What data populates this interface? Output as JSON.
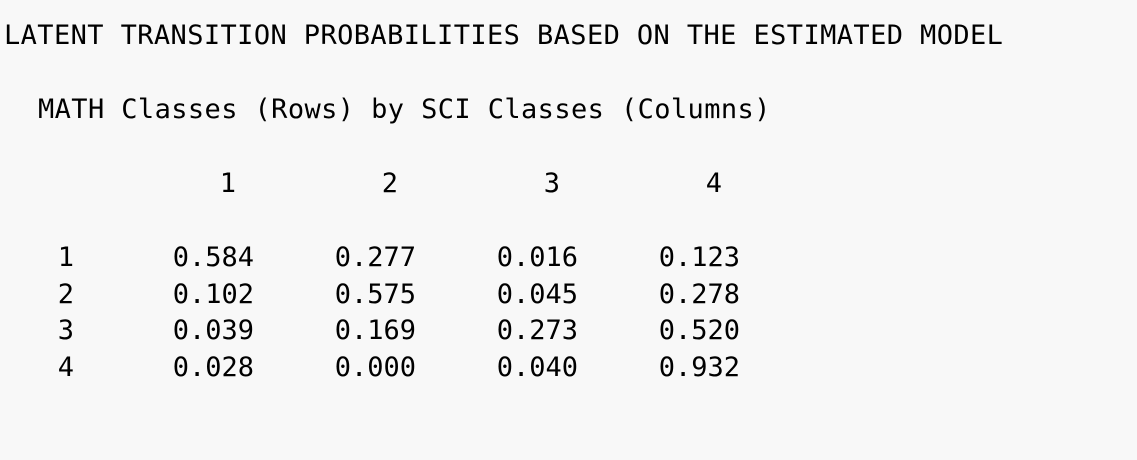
{
  "title": "LATENT TRANSITION PROBABILITIES BASED ON THE ESTIMATED MODEL",
  "subtitle": "MATH Classes (Rows) by SCI Classes (Columns)",
  "column_headers": [
    "1",
    "2",
    "3",
    "4"
  ],
  "rows": [
    {
      "label": "1",
      "values": [
        "0.584",
        "0.277",
        "0.016",
        "0.123"
      ]
    },
    {
      "label": "2",
      "values": [
        "0.102",
        "0.575",
        "0.045",
        "0.278"
      ]
    },
    {
      "label": "3",
      "values": [
        "0.039",
        "0.169",
        "0.273",
        "0.520"
      ]
    },
    {
      "label": "4",
      "values": [
        "0.028",
        "0.000",
        "0.040",
        "0.932"
      ]
    }
  ]
}
